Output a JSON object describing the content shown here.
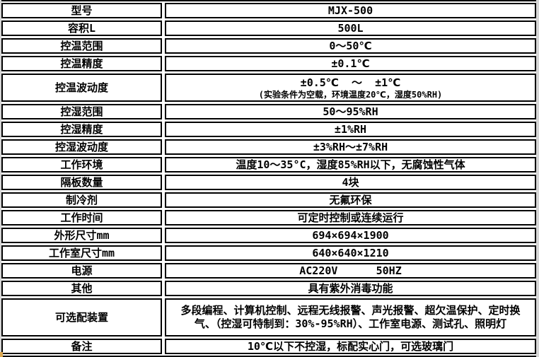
{
  "table": {
    "rows": [
      {
        "label": "型号",
        "value": "MJX-500"
      },
      {
        "label": "容积L",
        "value": "500L"
      },
      {
        "label": "控温范围",
        "value": "0～50℃"
      },
      {
        "label": "控温精度",
        "value": "±0.1℃"
      },
      {
        "label": "控温波动度",
        "value": "±0.5℃  ～  ±1℃",
        "note": "(实验条件为空载，环境温度20℃，湿度50%RH)"
      },
      {
        "label": "控湿范围",
        "value": "50～95%RH"
      },
      {
        "label": "控湿精度",
        "value": "±1%RH"
      },
      {
        "label": "控湿波动度",
        "value": "±3%RH～±7%RH"
      },
      {
        "label": "工作环境",
        "value": "温度10～35°C，湿度85%RH以下，无腐蚀性气体"
      },
      {
        "label": "隔板数量",
        "value": "4块"
      },
      {
        "label": "制冷剂",
        "value": "无氟环保"
      },
      {
        "label": "工作时间",
        "value": "可定时控制或连续运行"
      },
      {
        "label": "外形尺寸mm",
        "value": "694×694×1900"
      },
      {
        "label": "工作室尺寸mm",
        "value": "640×640×1210"
      },
      {
        "label": "电源",
        "value": "AC220V      50HZ"
      },
      {
        "label": "其他",
        "value": "具有紫外消毒功能"
      },
      {
        "label": "可选配装置",
        "value": "多段编程、计算机控制、远程无线报警、声光报警、超欠温保护、定时换气、（控湿可特制到：30%-95%RH）、工作室电源、测试孔、照明灯"
      },
      {
        "label": "备注",
        "value": "10℃以下不控湿，标配实心门，可选玻璃门"
      }
    ],
    "colors": {
      "border": "#000000",
      "cell_background": "#ffffff",
      "page_edge": "#d6d6d6",
      "corner_artifact": "#dca84f"
    }
  }
}
